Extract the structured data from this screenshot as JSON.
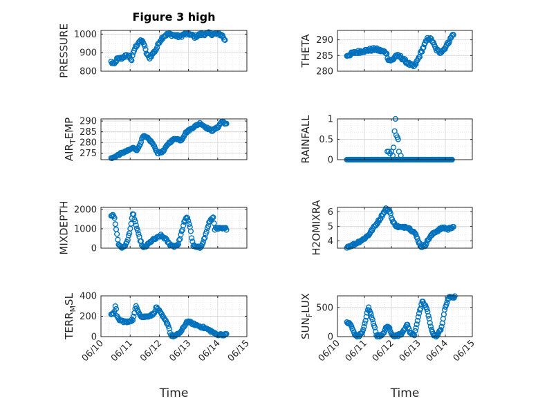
{
  "figure": {
    "title": "Figure 3 high",
    "marker_color": "#0072BD",
    "x_axis_label": "Time",
    "x_ticks": [
      "06/10",
      "06/11",
      "06/12",
      "06/13",
      "06/14",
      "06/15"
    ]
  },
  "chart_data": [
    {
      "type": "scatter",
      "name": "PRESSURE",
      "ylabel": "PRESSURE",
      "title": "Figure 3 high",
      "ylim": [
        800,
        1020
      ],
      "yticks": [
        800,
        900,
        1000
      ],
      "x_start": 10.35,
      "x_end": 14.25,
      "knots": [
        [
          10.35,
          850
        ],
        [
          10.45,
          835
        ],
        [
          10.55,
          865
        ],
        [
          10.7,
          870
        ],
        [
          10.8,
          880
        ],
        [
          10.95,
          885
        ],
        [
          11.05,
          860
        ],
        [
          11.15,
          920
        ],
        [
          11.3,
          960
        ],
        [
          11.45,
          960
        ],
        [
          11.55,
          900
        ],
        [
          11.65,
          870
        ],
        [
          11.75,
          890
        ],
        [
          11.9,
          920
        ],
        [
          12.0,
          960
        ],
        [
          12.15,
          990
        ],
        [
          12.3,
          1000
        ],
        [
          12.5,
          995
        ],
        [
          12.7,
          985
        ],
        [
          12.85,
          1000
        ],
        [
          13.05,
          1000
        ],
        [
          13.2,
          985
        ],
        [
          13.35,
          995
        ],
        [
          13.5,
          1000
        ],
        [
          13.7,
          1003
        ],
        [
          13.9,
          1000
        ],
        [
          14.05,
          1000
        ],
        [
          14.15,
          995
        ],
        [
          14.25,
          965
        ]
      ],
      "noise": 8
    },
    {
      "type": "scatter",
      "name": "THETA",
      "ylabel": "THETA",
      "ylim": [
        280,
        293
      ],
      "yticks": [
        280,
        285,
        290
      ],
      "x_start": 10.35,
      "x_end": 14.3,
      "knots": [
        [
          10.35,
          285
        ],
        [
          10.6,
          285.8
        ],
        [
          10.8,
          286.2
        ],
        [
          11.0,
          286.5
        ],
        [
          11.2,
          286.8
        ],
        [
          11.4,
          287
        ],
        [
          11.6,
          286.5
        ],
        [
          11.8,
          286
        ],
        [
          11.9,
          283.5
        ],
        [
          12.05,
          283.5
        ],
        [
          12.15,
          285
        ],
        [
          12.35,
          284.5
        ],
        [
          12.55,
          283
        ],
        [
          12.7,
          282
        ],
        [
          12.85,
          281.5
        ],
        [
          13.0,
          284
        ],
        [
          13.15,
          287
        ],
        [
          13.35,
          290.5
        ],
        [
          13.5,
          290
        ],
        [
          13.65,
          287
        ],
        [
          13.8,
          286
        ],
        [
          13.95,
          287
        ],
        [
          14.1,
          289
        ],
        [
          14.3,
          292
        ]
      ],
      "noise": 0.5
    },
    {
      "type": "scatter",
      "name": "AIR_TEMP",
      "ylabel": "AIR_TEMP",
      "ylim": [
        272,
        291
      ],
      "yticks": [
        275,
        280,
        285,
        290
      ],
      "x_start": 10.35,
      "x_end": 14.3,
      "knots": [
        [
          10.35,
          272.5
        ],
        [
          10.5,
          273.5
        ],
        [
          10.7,
          275
        ],
        [
          10.9,
          276
        ],
        [
          11.1,
          277.5
        ],
        [
          11.25,
          276.5
        ],
        [
          11.45,
          283
        ],
        [
          11.6,
          282
        ],
        [
          11.75,
          280
        ],
        [
          11.95,
          275
        ],
        [
          12.15,
          276
        ],
        [
          12.3,
          279.5
        ],
        [
          12.55,
          282
        ],
        [
          12.75,
          281
        ],
        [
          12.9,
          284.5
        ],
        [
          13.15,
          287
        ],
        [
          13.4,
          289
        ],
        [
          13.6,
          287
        ],
        [
          13.8,
          285.5
        ],
        [
          14.0,
          287
        ],
        [
          14.15,
          290
        ],
        [
          14.3,
          288.5
        ]
      ],
      "noise": 0.4
    },
    {
      "type": "scatter",
      "name": "RAINFALL",
      "ylabel": "RAINFALL",
      "ylim": [
        0,
        1
      ],
      "yticks": [
        0,
        0.5,
        1
      ],
      "x_start": 10.35,
      "x_end": 14.25,
      "knots": [
        [
          10.35,
          0
        ],
        [
          14.25,
          0
        ]
      ],
      "noise": 0,
      "extra_points": [
        [
          11.85,
          0.2
        ],
        [
          11.9,
          0.2
        ],
        [
          11.95,
          0.15
        ],
        [
          12.0,
          0.2
        ],
        [
          12.05,
          0.1
        ],
        [
          12.08,
          0.3
        ],
        [
          12.12,
          0.7
        ],
        [
          12.15,
          1.0
        ],
        [
          12.18,
          0.6
        ],
        [
          12.22,
          0.55
        ],
        [
          12.25,
          0.5
        ],
        [
          12.28,
          0.2
        ],
        [
          12.35,
          0.1
        ]
      ]
    },
    {
      "type": "scatter",
      "name": "MIXDEPTH",
      "ylabel": "MIXDEPTH",
      "ylim": [
        0,
        2100
      ],
      "yticks": [
        0,
        1000,
        2000
      ],
      "x_start": 10.35,
      "x_end": 14.3,
      "knots": [
        [
          10.35,
          1700
        ],
        [
          10.45,
          1650
        ],
        [
          10.5,
          1200
        ],
        [
          10.6,
          200
        ],
        [
          10.75,
          0
        ],
        [
          10.9,
          300
        ],
        [
          11.0,
          1000
        ],
        [
          11.1,
          1800
        ],
        [
          11.2,
          1200
        ],
        [
          11.3,
          600
        ],
        [
          11.45,
          0
        ],
        [
          11.55,
          100
        ],
        [
          11.75,
          400
        ],
        [
          11.9,
          500
        ],
        [
          12.05,
          650
        ],
        [
          12.2,
          500
        ],
        [
          12.35,
          200
        ],
        [
          12.5,
          100
        ],
        [
          12.65,
          200
        ],
        [
          12.85,
          1300
        ],
        [
          12.95,
          1650
        ],
        [
          13.05,
          1100
        ],
        [
          13.15,
          150
        ],
        [
          13.25,
          50
        ],
        [
          13.4,
          20
        ],
        [
          13.55,
          500
        ],
        [
          13.7,
          1300
        ],
        [
          13.85,
          1600
        ],
        [
          13.9,
          1000
        ]
      ],
      "noise": 60
    },
    {
      "type": "scatter",
      "name": "H2OMIXRA",
      "ylabel": "H2OMIXRA",
      "ylim": [
        3.5,
        6.3
      ],
      "yticks": [
        4,
        5,
        6
      ],
      "x_start": 10.35,
      "x_end": 14.3,
      "knots": [
        [
          10.35,
          3.6
        ],
        [
          10.55,
          3.7
        ],
        [
          10.75,
          3.9
        ],
        [
          10.95,
          4.1
        ],
        [
          11.15,
          4.4
        ],
        [
          11.3,
          4.8
        ],
        [
          11.5,
          5.3
        ],
        [
          11.7,
          5.9
        ],
        [
          11.8,
          6.2
        ],
        [
          11.95,
          6.0
        ],
        [
          12.05,
          5.3
        ],
        [
          12.2,
          5.0
        ],
        [
          12.4,
          4.9
        ],
        [
          12.55,
          5.0
        ],
        [
          12.7,
          4.8
        ],
        [
          12.85,
          4.6
        ],
        [
          13.0,
          4.0
        ],
        [
          13.1,
          3.6
        ],
        [
          13.25,
          3.7
        ],
        [
          13.4,
          4.2
        ],
        [
          13.6,
          4.6
        ],
        [
          13.8,
          4.8
        ],
        [
          13.95,
          4.9
        ],
        [
          14.1,
          4.8
        ],
        [
          14.3,
          5.0
        ]
      ],
      "noise": 0.08
    },
    {
      "type": "scatter",
      "name": "TERR_MSL",
      "ylabel": "TERR_MSL",
      "ylim": [
        0,
        400
      ],
      "yticks": [
        0,
        200,
        400
      ],
      "x_start": 10.35,
      "x_end": 14.3,
      "knots": [
        [
          10.35,
          210
        ],
        [
          10.45,
          230
        ],
        [
          10.5,
          320
        ],
        [
          10.55,
          190
        ],
        [
          10.65,
          160
        ],
        [
          10.9,
          140
        ],
        [
          11.1,
          170
        ],
        [
          11.2,
          300
        ],
        [
          11.3,
          240
        ],
        [
          11.4,
          190
        ],
        [
          11.6,
          200
        ],
        [
          11.8,
          220
        ],
        [
          11.9,
          290
        ],
        [
          12.0,
          250
        ],
        [
          12.15,
          180
        ],
        [
          12.3,
          120
        ],
        [
          12.4,
          10
        ],
        [
          12.55,
          5
        ],
        [
          12.75,
          50
        ],
        [
          12.95,
          150
        ],
        [
          13.05,
          140
        ],
        [
          13.2,
          120
        ],
        [
          13.4,
          100
        ],
        [
          13.6,
          80
        ],
        [
          13.8,
          50
        ],
        [
          13.95,
          20
        ]
      ],
      "noise": 10
    },
    {
      "type": "scatter",
      "name": "SUN_FLUX",
      "ylabel": "SUN_FLUX",
      "ylim": [
        0,
        700
      ],
      "yticks": [
        0,
        500
      ],
      "x_start": 10.35,
      "x_end": 14.35,
      "knots": [
        [
          10.35,
          250
        ],
        [
          10.5,
          200
        ],
        [
          10.65,
          20
        ],
        [
          10.8,
          10
        ],
        [
          10.95,
          100
        ],
        [
          11.05,
          300
        ],
        [
          11.15,
          500
        ],
        [
          11.3,
          300
        ],
        [
          11.45,
          20
        ],
        [
          11.65,
          10
        ],
        [
          11.8,
          150
        ],
        [
          11.9,
          180
        ],
        [
          12.0,
          40
        ],
        [
          12.15,
          10
        ],
        [
          12.35,
          40
        ],
        [
          12.5,
          150
        ],
        [
          12.6,
          200
        ],
        [
          12.7,
          60
        ],
        [
          12.85,
          30
        ],
        [
          13.0,
          350
        ],
        [
          13.15,
          600
        ],
        [
          13.3,
          500
        ],
        [
          13.45,
          200
        ],
        [
          13.55,
          30
        ],
        [
          13.7,
          10
        ],
        [
          13.85,
          150
        ],
        [
          14.0,
          500
        ],
        [
          14.1,
          650
        ],
        [
          14.2,
          680
        ]
      ],
      "noise": 20
    }
  ]
}
